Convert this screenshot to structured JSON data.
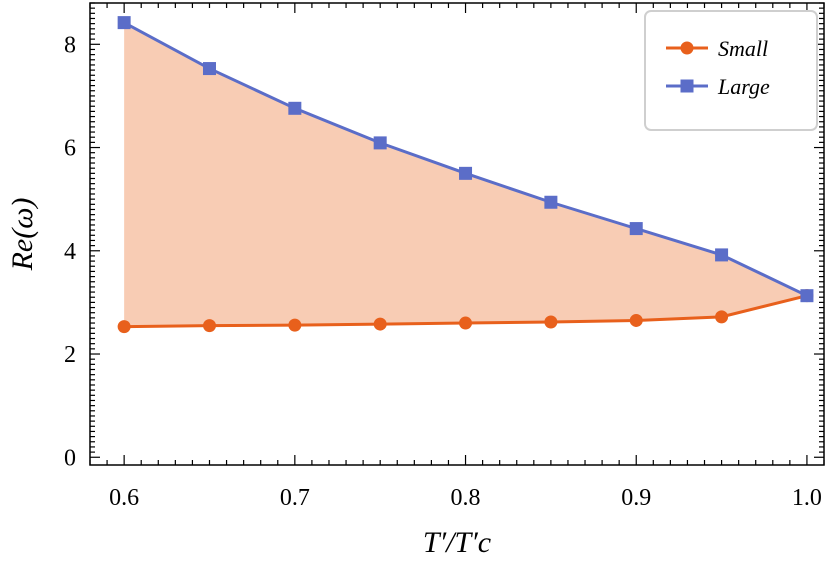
{
  "chart_data": {
    "type": "line",
    "xlabel": "T′/T′c",
    "ylabel": "Re(ω)",
    "xlim": [
      0.58,
      1.01
    ],
    "ylim": [
      -0.15,
      8.8
    ],
    "xticks": [
      0.6,
      0.7,
      0.8,
      0.9,
      1.0
    ],
    "xtick_labels": [
      "0.6",
      "0.7",
      "0.8",
      "0.9",
      "1.0"
    ],
    "yticks": [
      0,
      2,
      4,
      6,
      8
    ],
    "ytick_labels": [
      "0",
      "2",
      "4",
      "6",
      "8"
    ],
    "grid": false,
    "legend_position": "top-right",
    "fill_between": {
      "lower": "Small",
      "upper": "Large",
      "color": "#f8ccb4"
    },
    "x": [
      0.6,
      0.65,
      0.7,
      0.75,
      0.8,
      0.85,
      0.9,
      0.95,
      1.0
    ],
    "series": [
      {
        "name": "Small",
        "color": "#e8601c",
        "marker": "circle",
        "values": [
          2.53,
          2.55,
          2.56,
          2.58,
          2.6,
          2.62,
          2.65,
          2.72,
          3.13
        ]
      },
      {
        "name": "Large",
        "color": "#5b6dc8",
        "marker": "square",
        "values": [
          8.42,
          7.53,
          6.76,
          6.09,
          5.5,
          4.94,
          4.43,
          3.92,
          3.13
        ]
      }
    ]
  }
}
